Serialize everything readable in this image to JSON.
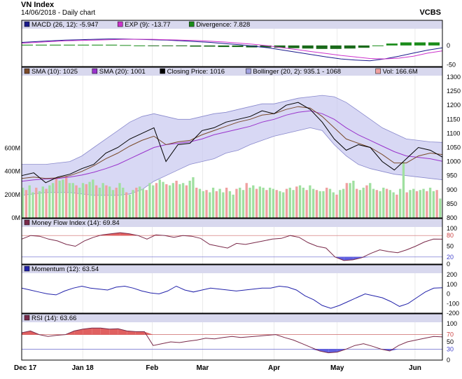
{
  "header": {
    "title": "VN Index",
    "subtitle": "14/06/2018 - Daily chart",
    "source": "VCBS"
  },
  "colors": {
    "bg_plot": "#ffffff",
    "header_band": "#d8d8ee",
    "frame": "#000000",
    "macd": "#1a1a8c",
    "exp": "#cc33cc",
    "div_pos": "#1a8c1a",
    "div_neg": "#1a6a1a",
    "sma10": "#7a4a2a",
    "sma20": "#9933cc",
    "close": "#000000",
    "bollinger_fill": "#c8c8f0",
    "bollinger_line": "#8888cc",
    "vol_up": "#a0e0a0",
    "vol_down": "#f0a0a0",
    "mfi": "#7a2a4a",
    "momentum": "#2222aa",
    "rsi": "#7a2a4a",
    "ob_fill": "#e06060",
    "os_fill": "#6060e0"
  },
  "legends": {
    "macd": [
      {
        "label": "MACD (26, 12): -5.947",
        "swatch": "#1a1a8c"
      },
      {
        "label": "EXP (9): -13.77",
        "swatch": "#cc33cc"
      },
      {
        "label": "Divergence: 7.828",
        "swatch": "#1a8c1a"
      }
    ],
    "price": [
      {
        "label": "SMA (10): 1025",
        "swatch": "#7a4a2a"
      },
      {
        "label": "SMA (20): 1001",
        "swatch": "#9933cc"
      },
      {
        "label": "Closing Price: 1016",
        "swatch": "#000000"
      },
      {
        "label": "Bollinger (20, 2): 935.1 - 1068",
        "swatch": "#a0a0e0"
      },
      {
        "label": "Vol: 166.6M",
        "swatch": "#f0a0a0"
      }
    ],
    "mfi": [
      {
        "label": "Money Flow Index (14): 69.84",
        "swatch": "#7a2a4a"
      }
    ],
    "momentum": [
      {
        "label": "Momentum (12): 63.54",
        "swatch": "#2222aa"
      }
    ],
    "rsi": [
      {
        "label": "RSI (14): 63.66",
        "swatch": "#7a2a4a"
      }
    ]
  },
  "x_labels": [
    "Dec 17",
    "Jan 18",
    "Feb",
    "Mar",
    "Apr",
    "May",
    "Jun"
  ],
  "chart_data": [
    {
      "panel": "macd",
      "type": "line",
      "x_labels": [
        "Dec 17",
        "Jan 18",
        "Feb",
        "Mar",
        "Apr",
        "May",
        "Jun"
      ],
      "y_ticks": [
        "0",
        "-50"
      ],
      "ylim": [
        -55,
        40
      ],
      "series": [
        {
          "name": "MACD (26, 12)",
          "values": [
            8,
            10,
            12,
            14,
            15,
            16,
            17,
            17,
            16,
            15,
            14,
            12,
            10,
            8,
            5,
            2,
            -2,
            -6,
            -12,
            -18,
            -24,
            -30,
            -35,
            -38,
            -40,
            -35,
            -28,
            -20,
            -12,
            -6
          ]
        },
        {
          "name": "EXP (9)",
          "values": [
            6,
            8,
            10,
            12,
            13,
            14,
            15,
            16,
            16,
            16,
            15,
            14,
            13,
            11,
            9,
            6,
            3,
            -1,
            -6,
            -11,
            -16,
            -21,
            -26,
            -30,
            -34,
            -35,
            -33,
            -28,
            -20,
            -14
          ]
        },
        {
          "name": "Divergence",
          "type": "bar",
          "values": [
            2,
            2,
            2,
            2,
            2,
            2,
            2,
            1,
            0,
            -1,
            -1,
            -2,
            -3,
            -3,
            -4,
            -4,
            -5,
            -5,
            -6,
            -7,
            -8,
            -9,
            -9,
            -8,
            -6,
            0,
            5,
            8,
            8,
            8
          ]
        }
      ]
    },
    {
      "panel": "price",
      "type": "line",
      "x_labels": [
        "Dec 17",
        "Jan 18",
        "Feb",
        "Mar",
        "Apr",
        "May",
        "Jun"
      ],
      "y_ticks": [
        "1300",
        "1250",
        "1200",
        "1150",
        "1100",
        "1050",
        "1000",
        "950",
        "900",
        "850",
        "800"
      ],
      "ylim": [
        800,
        1300
      ],
      "vol_ticks": [
        "600M",
        "400M",
        "200M",
        "0M"
      ],
      "vol_lim": [
        0,
        700
      ],
      "series": [
        {
          "name": "Closing Price",
          "values": [
            950,
            960,
            925,
            945,
            955,
            975,
            990,
            1030,
            1050,
            1080,
            1100,
            1120,
            1000,
            1060,
            1065,
            1110,
            1120,
            1140,
            1150,
            1160,
            1180,
            1170,
            1200,
            1210,
            1185,
            1140,
            1080,
            1040,
            1060,
            1050,
            1000,
            970,
            1010,
            1050,
            1040,
            1016
          ]
        },
        {
          "name": "SMA (10)",
          "values": [
            940,
            945,
            940,
            942,
            950,
            965,
            985,
            1010,
            1030,
            1055,
            1075,
            1090,
            1060,
            1070,
            1075,
            1095,
            1110,
            1125,
            1140,
            1150,
            1165,
            1170,
            1185,
            1195,
            1190,
            1160,
            1120,
            1080,
            1065,
            1050,
            1025,
            995,
            995,
            1020,
            1030,
            1025
          ]
        },
        {
          "name": "SMA (20)",
          "values": [
            930,
            935,
            938,
            940,
            945,
            952,
            962,
            975,
            990,
            1010,
            1030,
            1050,
            1060,
            1065,
            1070,
            1080,
            1095,
            1105,
            1115,
            1125,
            1140,
            1150,
            1165,
            1175,
            1180,
            1170,
            1150,
            1120,
            1095,
            1075,
            1055,
            1035,
            1020,
            1015,
            1010,
            1001
          ]
        },
        {
          "name": "Bollinger upper",
          "values": [
            990,
            990,
            990,
            995,
            1000,
            1020,
            1050,
            1080,
            1110,
            1140,
            1160,
            1170,
            1160,
            1150,
            1150,
            1160,
            1170,
            1175,
            1185,
            1195,
            1205,
            1205,
            1215,
            1225,
            1230,
            1235,
            1230,
            1210,
            1180,
            1150,
            1120,
            1100,
            1080,
            1075,
            1070,
            1068
          ]
        },
        {
          "name": "Bollinger lower",
          "values": [
            880,
            885,
            890,
            890,
            890,
            885,
            880,
            880,
            880,
            885,
            900,
            930,
            950,
            970,
            990,
            1000,
            1010,
            1030,
            1040,
            1060,
            1075,
            1090,
            1100,
            1110,
            1120,
            1110,
            1060,
            1020,
            990,
            975,
            965,
            955,
            950,
            945,
            940,
            935.1
          ]
        },
        {
          "name": "Vol",
          "type": "bar",
          "values": [
            260,
            240,
            280,
            220,
            260,
            230,
            270,
            250,
            280,
            300,
            350,
            320,
            330,
            360,
            300,
            300,
            280,
            260,
            300,
            290,
            310,
            330,
            280,
            260,
            300,
            280,
            270,
            240,
            260,
            300,
            260,
            220,
            200,
            240,
            260,
            270,
            250,
            240,
            300,
            280,
            300,
            330,
            310,
            290,
            280,
            300,
            320,
            290,
            300,
            280,
            320,
            350,
            260,
            250,
            230,
            240,
            220,
            260,
            230,
            250,
            220,
            260,
            230,
            200,
            250,
            260,
            240,
            300,
            260,
            280,
            250,
            270,
            260,
            240,
            260,
            250,
            240,
            230,
            220,
            250,
            260,
            240,
            270,
            280,
            260,
            240,
            280,
            250,
            240,
            230,
            230,
            260,
            250,
            220,
            200,
            240,
            250,
            300,
            300,
            320,
            250,
            240,
            260,
            280,
            300,
            250,
            240,
            230,
            260,
            250,
            240,
            220,
            200,
            250,
            480,
            220,
            240,
            250,
            230,
            240,
            250,
            230,
            260,
            230,
            240,
            166.6
          ]
        }
      ]
    },
    {
      "panel": "mfi",
      "type": "line",
      "y_ticks": [
        "100",
        "80",
        "50",
        "20",
        "0"
      ],
      "ylim": [
        0,
        100
      ],
      "series": [
        {
          "name": "Money Flow Index (14)",
          "values": [
            70,
            80,
            78,
            70,
            65,
            55,
            50,
            65,
            75,
            82,
            85,
            88,
            85,
            80,
            70,
            82,
            80,
            75,
            80,
            78,
            72,
            55,
            50,
            45,
            58,
            55,
            60,
            65,
            70,
            72,
            80,
            75,
            60,
            50,
            45,
            20,
            10,
            12,
            18,
            30,
            40,
            35,
            32,
            40,
            50,
            62,
            70,
            69.84
          ]
        }
      ]
    },
    {
      "panel": "momentum",
      "type": "line",
      "y_ticks": [
        "200",
        "100",
        "0",
        "-100",
        "-200"
      ],
      "ylim": [
        -200,
        200
      ],
      "series": [
        {
          "name": "Momentum (12)",
          "values": [
            60,
            40,
            20,
            0,
            -10,
            30,
            60,
            80,
            60,
            50,
            40,
            70,
            80,
            60,
            30,
            10,
            0,
            30,
            80,
            40,
            20,
            40,
            60,
            50,
            40,
            30,
            40,
            50,
            60,
            60,
            80,
            70,
            40,
            -20,
            -60,
            -120,
            -150,
            -120,
            -80,
            -40,
            0,
            -20,
            -40,
            -80,
            -130,
            -100,
            -40,
            20,
            60,
            63.54
          ]
        }
      ]
    },
    {
      "panel": "rsi",
      "type": "line",
      "y_ticks": [
        "100",
        "70",
        "50",
        "30",
        "0"
      ],
      "ylim": [
        0,
        100
      ],
      "series": [
        {
          "name": "RSI (14)",
          "values": [
            75,
            80,
            70,
            65,
            68,
            70,
            80,
            85,
            88,
            88,
            85,
            86,
            80,
            78,
            78,
            40,
            45,
            50,
            48,
            52,
            55,
            60,
            58,
            62,
            65,
            62,
            64,
            66,
            68,
            70,
            62,
            55,
            45,
            35,
            25,
            20,
            22,
            30,
            40,
            45,
            38,
            30,
            25,
            40,
            50,
            55,
            60,
            65,
            63.66
          ]
        }
      ]
    }
  ]
}
